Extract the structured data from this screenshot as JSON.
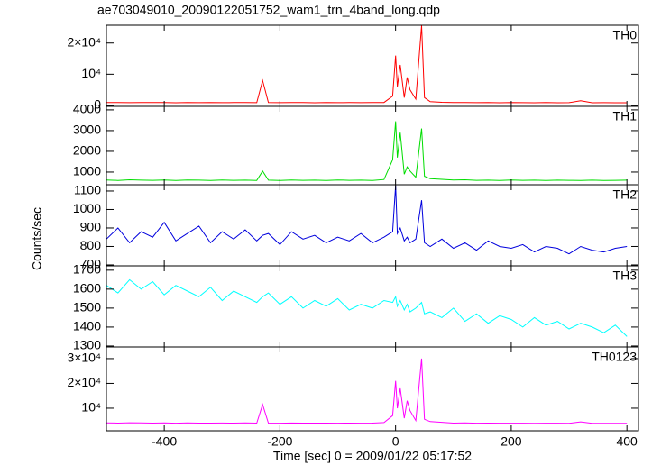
{
  "chart_data": {
    "type": "line",
    "title": "ae703049010_20090122051752_wam1_trn_4band_long.qdp",
    "x_label": "Time [sec] 0 = 2009/01/22 05:17:52",
    "y_label": "Counts/sec",
    "xlim": [
      -500,
      420
    ],
    "xticks": [
      -400,
      -200,
      0,
      200,
      400
    ],
    "x": [
      -500,
      -480,
      -460,
      -440,
      -420,
      -400,
      -380,
      -360,
      -340,
      -320,
      -300,
      -280,
      -260,
      -240,
      -230,
      -220,
      -200,
      -180,
      -160,
      -140,
      -120,
      -100,
      -80,
      -60,
      -40,
      -20,
      -5,
      0,
      3,
      8,
      15,
      20,
      25,
      35,
      45,
      50,
      60,
      80,
      100,
      120,
      140,
      160,
      180,
      200,
      220,
      240,
      260,
      280,
      300,
      320,
      340,
      360,
      380,
      400
    ],
    "series": [
      {
        "name": "TH0",
        "color": "#ff0000",
        "ylim": [
          -300,
          25700
        ],
        "yticks": [
          0,
          {
            "value": 10000,
            "label": "10⁴"
          },
          {
            "value": 20000,
            "label": "2×10⁴"
          }
        ],
        "values": [
          900,
          950,
          880,
          920,
          900,
          940,
          870,
          910,
          890,
          930,
          880,
          900,
          920,
          890,
          8000,
          900,
          880,
          920,
          900,
          870,
          910,
          890,
          900,
          880,
          920,
          950,
          3000,
          16000,
          6000,
          13000,
          2500,
          9000,
          5000,
          2000,
          25600,
          2500,
          1200,
          1000,
          900,
          950,
          880,
          900,
          870,
          900,
          880,
          860,
          900,
          870,
          880,
          1500,
          860,
          880,
          870,
          860
        ]
      },
      {
        "name": "TH1",
        "color": "#00dd00",
        "ylim": [
          390,
          4170
        ],
        "yticks": [
          1000,
          2000,
          3000,
          4000
        ],
        "values": [
          620,
          600,
          630,
          610,
          605,
          620,
          600,
          615,
          610,
          595,
          620,
          605,
          610,
          600,
          1050,
          610,
          600,
          615,
          605,
          610,
          600,
          620,
          605,
          610,
          600,
          640,
          1600,
          3450,
          1700,
          2900,
          900,
          1250,
          1050,
          750,
          3100,
          800,
          680,
          650,
          620,
          630,
          605,
          610,
          600,
          615,
          605,
          610,
          600,
          610,
          605,
          600,
          610,
          600,
          605,
          610
        ]
      },
      {
        "name": "TH2",
        "color": "#0000dd",
        "ylim": [
          695,
          1134
        ],
        "yticks": [
          700,
          800,
          900,
          1000,
          1100
        ],
        "values": [
          840,
          900,
          820,
          880,
          850,
          930,
          830,
          870,
          910,
          820,
          880,
          840,
          890,
          830,
          860,
          870,
          810,
          880,
          840,
          860,
          820,
          850,
          830,
          870,
          820,
          850,
          880,
          1130,
          870,
          900,
          830,
          850,
          820,
          840,
          1050,
          820,
          800,
          840,
          790,
          820,
          780,
          830,
          800,
          790,
          810,
          770,
          800,
          790,
          760,
          800,
          780,
          770,
          790,
          800
        ]
      },
      {
        "name": "TH3",
        "color": "#00ffff",
        "ylim": [
          1295,
          1723
        ],
        "yticks": [
          1300,
          1400,
          1500,
          1600,
          1700
        ],
        "values": [
          1620,
          1580,
          1650,
          1600,
          1640,
          1570,
          1620,
          1590,
          1560,
          1610,
          1540,
          1590,
          1560,
          1530,
          1560,
          1580,
          1520,
          1560,
          1500,
          1540,
          1510,
          1550,
          1490,
          1520,
          1500,
          1540,
          1530,
          1560,
          1510,
          1540,
          1490,
          1520,
          1480,
          1500,
          1530,
          1470,
          1480,
          1450,
          1500,
          1430,
          1470,
          1420,
          1460,
          1440,
          1400,
          1450,
          1410,
          1430,
          1390,
          1420,
          1400,
          1370,
          1410,
          1350
        ]
      },
      {
        "name": "TH0123",
        "color": "#ff00ff",
        "ylim": [
          900,
          34700
        ],
        "yticks": [
          {
            "value": 10000,
            "label": "10⁴"
          },
          {
            "value": 20000,
            "label": "2×10⁴"
          },
          {
            "value": 30000,
            "label": "3×10⁴"
          }
        ],
        "values": [
          4100,
          4000,
          4150,
          4050,
          4000,
          4100,
          3950,
          4050,
          4000,
          3980,
          4020,
          4000,
          4050,
          3980,
          11500,
          4000,
          3950,
          4020,
          3990,
          3980,
          4000,
          3950,
          3990,
          3970,
          4000,
          4200,
          7000,
          21000,
          10000,
          18000,
          6000,
          13000,
          9000,
          5000,
          30000,
          5500,
          4600,
          4300,
          4000,
          4050,
          3950,
          3980,
          3940,
          3970,
          3950,
          3930,
          3960,
          3940,
          3930,
          4500,
          3920,
          3930,
          3910,
          3900
        ]
      }
    ]
  }
}
